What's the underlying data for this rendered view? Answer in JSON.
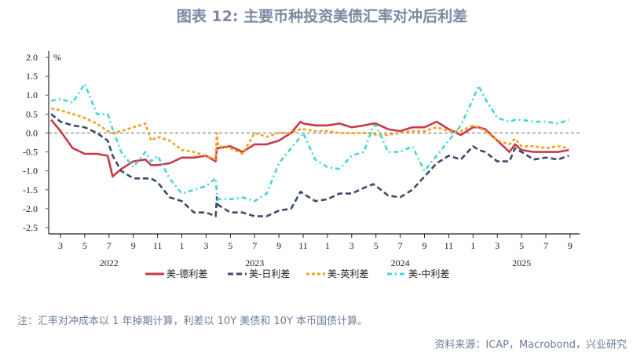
{
  "title": "图表 12: 主要币种投资美债汇率对冲后利差",
  "note": "注：汇率对冲成本以 1 年掉期计算，利差以 10Y 美债和 10Y 本币国债计算。",
  "source": "资料来源：ICAP，Macrobond，兴业研究",
  "chart_data": {
    "type": "line",
    "title": "图表 12: 主要币种投资美债汇率对冲后利差",
    "ylabel": "%",
    "ylim": [
      -2.5,
      2.0
    ],
    "yticks": [
      "2.0",
      "1.5",
      "1.0",
      "0.5",
      "0.0",
      "-0.5",
      "-1.0",
      "-1.5",
      "-2.0",
      "-2.5"
    ],
    "xticks": [
      {
        "label": "3",
        "date": "2022-03"
      },
      {
        "label": "5",
        "date": "2022-05"
      },
      {
        "label": "7",
        "date": "2022-07"
      },
      {
        "label": "9",
        "date": "2022-09"
      },
      {
        "label": "11",
        "date": "2022-11"
      },
      {
        "label": "1",
        "date": "2023-01"
      },
      {
        "label": "3",
        "date": "2023-03"
      },
      {
        "label": "5",
        "date": "2023-05"
      },
      {
        "label": "7",
        "date": "2023-07"
      },
      {
        "label": "9",
        "date": "2023-09"
      },
      {
        "label": "11",
        "date": "2023-11"
      },
      {
        "label": "1",
        "date": "2024-01"
      },
      {
        "label": "3",
        "date": "2024-03"
      },
      {
        "label": "5",
        "date": "2024-05"
      },
      {
        "label": "7",
        "date": "2024-07"
      },
      {
        "label": "9",
        "date": "2024-09"
      },
      {
        "label": "11",
        "date": "2024-11"
      },
      {
        "label": "1",
        "date": "2025-01"
      },
      {
        "label": "3",
        "date": "2025-03"
      },
      {
        "label": "5",
        "date": "2025-05"
      },
      {
        "label": "7",
        "date": "2025-07"
      },
      {
        "label": "9",
        "date": "2025-09"
      }
    ],
    "years": [
      {
        "label": "2022",
        "date": "2022-07"
      },
      {
        "label": "2023",
        "date": "2023-07"
      },
      {
        "label": "2024",
        "date": "2024-07"
      },
      {
        "label": "2025",
        "date": "2025-05"
      }
    ],
    "reference_line": 0.0,
    "legend_position": "bottom",
    "x": [
      "2022-02-08",
      "2022-03-01",
      "2022-04-01",
      "2022-05-01",
      "2022-06-01",
      "2022-06-28",
      "2022-07-10",
      "2022-08-01",
      "2022-09-01",
      "2022-10-01",
      "2022-10-15",
      "2022-11-01",
      "2022-12-01",
      "2023-01-01",
      "2023-02-01",
      "2023-03-01",
      "2023-03-25",
      "2023-03-28",
      "2023-04-01",
      "2023-05-01",
      "2023-06-01",
      "2023-07-01",
      "2023-08-01",
      "2023-09-01",
      "2023-10-01",
      "2023-10-25",
      "2023-11-01",
      "2023-12-01",
      "2024-01-01",
      "2024-02-01",
      "2024-03-01",
      "2024-04-01",
      "2024-04-25",
      "2024-05-01",
      "2024-06-01",
      "2024-07-01",
      "2024-08-01",
      "2024-09-01",
      "2024-10-01",
      "2024-11-01",
      "2024-12-01",
      "2025-01-01",
      "2025-01-15",
      "2025-02-01",
      "2025-03-01",
      "2025-04-01",
      "2025-04-15",
      "2025-05-01",
      "2025-06-01",
      "2025-07-01",
      "2025-08-01",
      "2025-08-28"
    ],
    "series": [
      {
        "name": "美-德利差",
        "color": "#c9394a",
        "style": "solid",
        "values": [
          0.35,
          0.05,
          -0.4,
          -0.55,
          -0.55,
          -0.6,
          -1.15,
          -0.95,
          -0.75,
          -0.7,
          -0.85,
          -0.85,
          -0.8,
          -0.65,
          -0.65,
          -0.6,
          -0.75,
          -0.4,
          -0.4,
          -0.35,
          -0.5,
          -0.3,
          -0.3,
          -0.2,
          0.0,
          0.3,
          0.25,
          0.2,
          0.2,
          0.25,
          0.15,
          0.2,
          0.25,
          0.25,
          0.1,
          0.05,
          0.15,
          0.15,
          0.3,
          0.1,
          -0.05,
          0.15,
          0.15,
          0.1,
          -0.2,
          -0.5,
          -0.3,
          -0.45,
          -0.5,
          -0.5,
          -0.5,
          -0.45
        ]
      },
      {
        "name": "美-日利差",
        "color": "#3d4b68",
        "style": "dash",
        "values": [
          0.5,
          0.3,
          0.2,
          0.15,
          0.0,
          -0.2,
          -0.6,
          -1.0,
          -1.2,
          -1.2,
          -1.2,
          -1.3,
          -1.7,
          -1.8,
          -2.1,
          -2.1,
          -2.2,
          -1.7,
          -1.9,
          -2.1,
          -2.1,
          -2.2,
          -2.2,
          -2.05,
          -2.0,
          -1.55,
          -1.6,
          -1.8,
          -1.75,
          -1.6,
          -1.6,
          -1.45,
          -1.35,
          -1.4,
          -1.65,
          -1.7,
          -1.5,
          -1.15,
          -0.8,
          -0.6,
          -0.7,
          -0.35,
          -0.45,
          -0.5,
          -0.75,
          -0.75,
          -0.4,
          -0.5,
          -0.7,
          -0.65,
          -0.7,
          -0.6
        ]
      },
      {
        "name": "美-英利差",
        "color": "#f5a020",
        "style": "shortdash",
        "values": [
          0.65,
          0.6,
          0.5,
          0.4,
          0.25,
          0.05,
          0.0,
          0.05,
          0.15,
          0.25,
          -0.2,
          -0.1,
          -0.2,
          -0.45,
          -0.5,
          -0.6,
          -0.7,
          0.0,
          -0.35,
          -0.4,
          -0.55,
          0.0,
          -0.1,
          0.0,
          0.0,
          0.1,
          0.1,
          0.05,
          0.05,
          0.0,
          0.0,
          0.0,
          0.0,
          -0.05,
          -0.05,
          0.0,
          0.05,
          0.05,
          0.15,
          0.05,
          0.05,
          0.2,
          0.15,
          0.05,
          -0.2,
          -0.3,
          -0.15,
          -0.35,
          -0.35,
          -0.4,
          -0.35,
          -0.4
        ]
      },
      {
        "name": "美-中利差",
        "color": "#46d6d6",
        "style": "dashdot",
        "values": [
          0.85,
          0.9,
          0.8,
          1.3,
          0.5,
          0.5,
          0.1,
          -0.5,
          -0.9,
          -0.5,
          -0.75,
          -0.6,
          -1.2,
          -1.6,
          -1.5,
          -1.4,
          -1.2,
          -1.6,
          -1.75,
          -1.75,
          -1.7,
          -1.8,
          -1.6,
          -0.8,
          -0.4,
          -0.1,
          0.0,
          -0.7,
          -0.9,
          -0.95,
          -0.6,
          -0.5,
          0.2,
          0.2,
          -0.5,
          -0.5,
          -0.35,
          -1.0,
          -0.6,
          -0.2,
          0.2,
          0.9,
          1.25,
          0.9,
          0.4,
          0.3,
          0.35,
          0.35,
          0.3,
          0.3,
          0.25,
          0.35
        ]
      }
    ]
  }
}
